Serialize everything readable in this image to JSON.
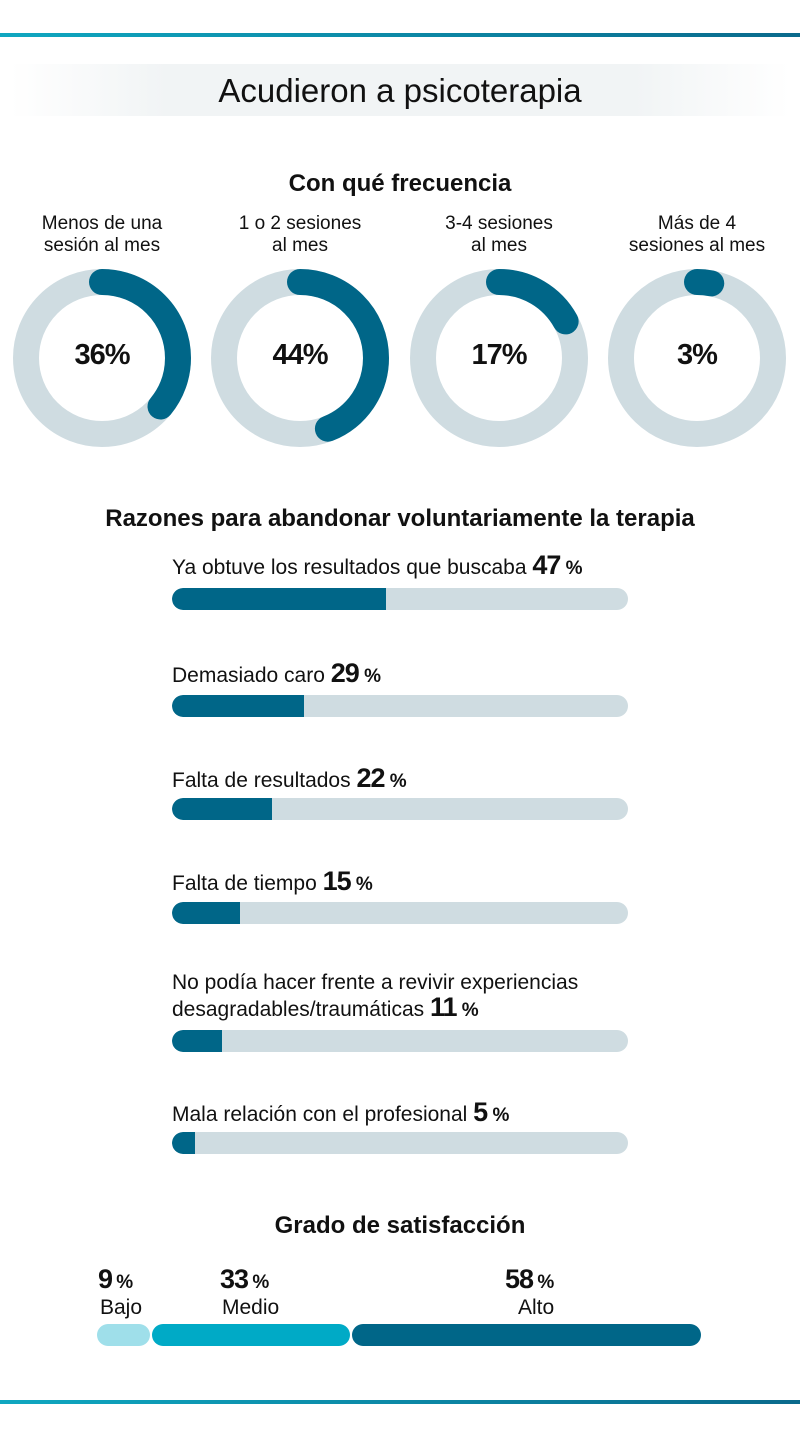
{
  "title": "Acudieron a psicoterapia",
  "colors": {
    "accent": "#006688",
    "track": "#cfdce1",
    "bajo": "#9fdfea",
    "medio": "#00aac6",
    "alto": "#006688"
  },
  "chart_data": [
    {
      "type": "pie",
      "title": "Con qué frecuencia",
      "categories": [
        "Menos de una sesión al mes",
        "1 o 2 sesiones al mes",
        "3-4 sesiones al mes",
        "Más de 4 sesiones al mes"
      ],
      "values": [
        36,
        44,
        17,
        3
      ],
      "labels": [
        [
          "Menos de una",
          "sesión al mes"
        ],
        [
          "1 o 2 sesiones",
          "al mes"
        ],
        [
          "3-4 sesiones",
          "al mes"
        ],
        [
          "Más de 4",
          "sesiones al mes"
        ]
      ],
      "value_labels": [
        "36%",
        "44%",
        "17%",
        "3%"
      ]
    },
    {
      "type": "bar",
      "title": "Razones para abandonar voluntariamente la terapia",
      "categories": [
        "Ya obtuve los resultados que buscaba",
        "Demasiado caro",
        "Falta de resultados",
        "Falta de tiempo",
        "No podía hacer frente a revivir experiencias desagradables/traumáticas",
        "Mala relación con el profesional"
      ],
      "values": [
        47,
        29,
        22,
        15,
        11,
        5
      ],
      "unit": "%",
      "xlim": [
        0,
        100
      ]
    },
    {
      "type": "bar",
      "title": "Grado de satisfacción",
      "stacked": true,
      "categories": [
        "Bajo",
        "Medio",
        "Alto"
      ],
      "values": [
        9,
        33,
        58
      ],
      "unit": "%"
    }
  ]
}
